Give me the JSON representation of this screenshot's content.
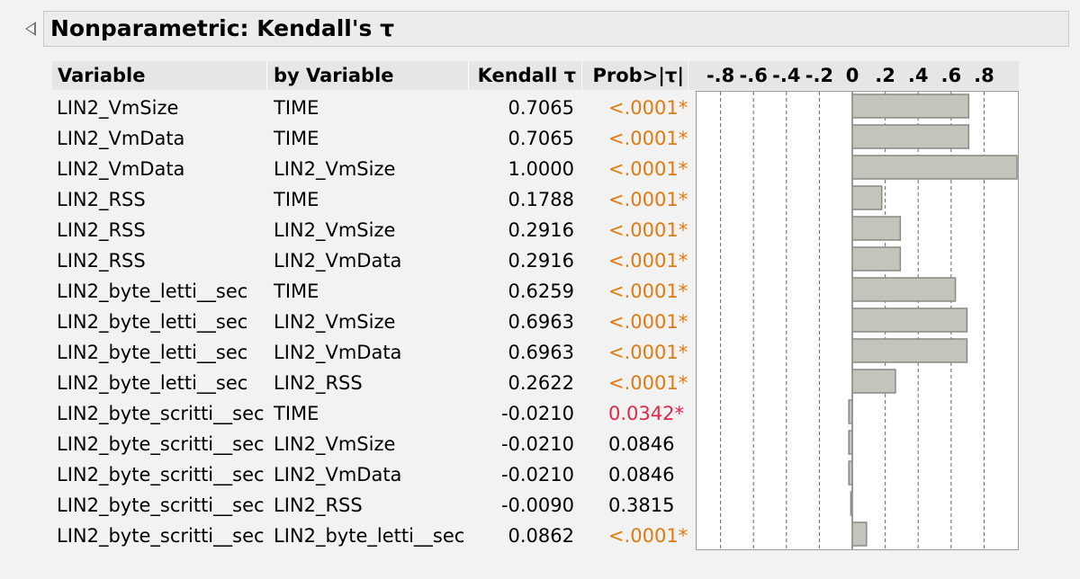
{
  "report": {
    "title": "Nonparametric: Kendall's τ"
  },
  "table": {
    "headers": {
      "variable": "Variable",
      "by_variable": "by Variable",
      "kendall": "Kendall τ",
      "prob": "Prob>|τ|"
    },
    "axis_ticks": [
      "-.8",
      "-.6",
      "-.4",
      "-.2",
      "0",
      ".2",
      ".4",
      ".6",
      ".8"
    ],
    "rows": [
      {
        "variable": "LIN2_VmSize",
        "by_variable": "TIME",
        "kendall": "0.7065",
        "tau": 0.7065,
        "prob": "<.0001*",
        "sig": "high"
      },
      {
        "variable": "LIN2_VmData",
        "by_variable": "TIME",
        "kendall": "0.7065",
        "tau": 0.7065,
        "prob": "<.0001*",
        "sig": "high"
      },
      {
        "variable": "LIN2_VmData",
        "by_variable": "LIN2_VmSize",
        "kendall": "1.0000",
        "tau": 1.0,
        "prob": "<.0001*",
        "sig": "high"
      },
      {
        "variable": "LIN2_RSS",
        "by_variable": "TIME",
        "kendall": "0.1788",
        "tau": 0.1788,
        "prob": "<.0001*",
        "sig": "high"
      },
      {
        "variable": "LIN2_RSS",
        "by_variable": "LIN2_VmSize",
        "kendall": "0.2916",
        "tau": 0.2916,
        "prob": "<.0001*",
        "sig": "high"
      },
      {
        "variable": "LIN2_RSS",
        "by_variable": "LIN2_VmData",
        "kendall": "0.2916",
        "tau": 0.2916,
        "prob": "<.0001*",
        "sig": "high"
      },
      {
        "variable": "LIN2_byte_letti__sec",
        "by_variable": "TIME",
        "kendall": "0.6259",
        "tau": 0.6259,
        "prob": "<.0001*",
        "sig": "high"
      },
      {
        "variable": "LIN2_byte_letti__sec",
        "by_variable": "LIN2_VmSize",
        "kendall": "0.6963",
        "tau": 0.6963,
        "prob": "<.0001*",
        "sig": "high"
      },
      {
        "variable": "LIN2_byte_letti__sec",
        "by_variable": "LIN2_VmData",
        "kendall": "0.6963",
        "tau": 0.6963,
        "prob": "<.0001*",
        "sig": "high"
      },
      {
        "variable": "LIN2_byte_letti__sec",
        "by_variable": "LIN2_RSS",
        "kendall": "0.2622",
        "tau": 0.2622,
        "prob": "<.0001*",
        "sig": "high"
      },
      {
        "variable": "LIN2_byte_scritti__sec",
        "by_variable": "TIME",
        "kendall": "-0.0210",
        "tau": -0.021,
        "prob": "0.0342*",
        "sig": "mid"
      },
      {
        "variable": "LIN2_byte_scritti__sec",
        "by_variable": "LIN2_VmSize",
        "kendall": "-0.0210",
        "tau": -0.021,
        "prob": "0.0846",
        "sig": "none"
      },
      {
        "variable": "LIN2_byte_scritti__sec",
        "by_variable": "LIN2_VmData",
        "kendall": "-0.0210",
        "tau": -0.021,
        "prob": "0.0846",
        "sig": "none"
      },
      {
        "variable": "LIN2_byte_scritti__sec",
        "by_variable": "LIN2_RSS",
        "kendall": "-0.0090",
        "tau": -0.009,
        "prob": "0.3815",
        "sig": "none"
      },
      {
        "variable": "LIN2_byte_scritti__sec",
        "by_variable": "LIN2_byte_letti__sec",
        "kendall": "0.0862",
        "tau": 0.0862,
        "prob": "<.0001*",
        "sig": "high"
      }
    ]
  },
  "colors": {
    "prob_high_sig": "#e07a10",
    "prob_sig": "#e0294a",
    "bar_fill": "#c5c4bc",
    "bar_stroke": "#8a8a82"
  }
}
